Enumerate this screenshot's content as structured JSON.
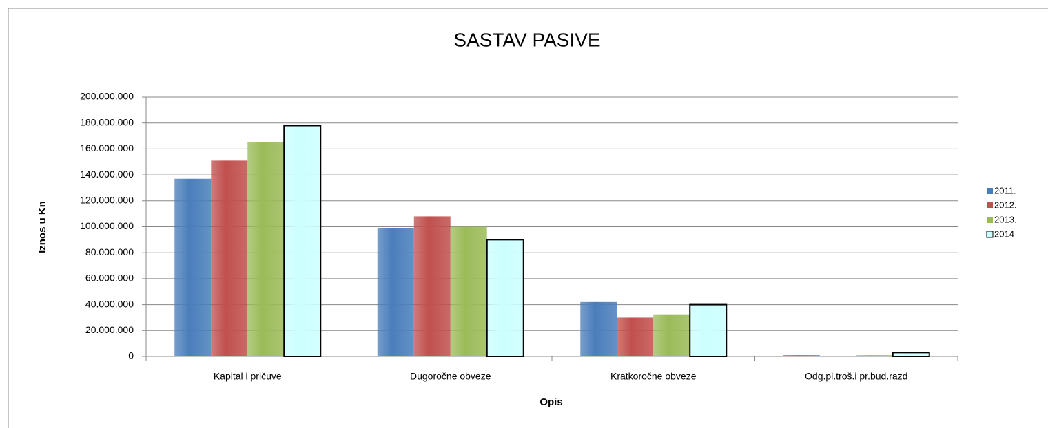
{
  "chart_data": {
    "type": "bar",
    "title": "SASTAV PASIVE",
    "x_label": "Opis",
    "y_label": "Iznos u Kn",
    "categories": [
      "Kapital i pričuve",
      "Dugoročne obveze",
      "Kratkoročne obveze",
      "Odg.pl.troš.i pr.bud.razd"
    ],
    "series": [
      {
        "name": "2011.",
        "color": "#4a7ebb",
        "values": [
          137000000,
          99000000,
          42000000,
          1000000
        ]
      },
      {
        "name": "2012.",
        "color": "#c0504d",
        "values": [
          151000000,
          108000000,
          30000000,
          500000
        ]
      },
      {
        "name": "2013.",
        "color": "#9bbb59",
        "values": [
          165000000,
          100000000,
          32000000,
          1000000
        ]
      },
      {
        "name": "2014",
        "color": "#ccffff",
        "values": [
          178000000,
          90000000,
          40000000,
          3000000
        ]
      }
    ],
    "ylim": [
      0,
      200000000
    ],
    "yticks": [
      0,
      {
        "value": 20000000,
        "label": "20.000.000"
      },
      {
        "value": 40000000,
        "label": "40.000.000"
      },
      {
        "value": 60000000,
        "label": "60.000.000"
      },
      {
        "value": 80000000,
        "label": "80.000.000"
      },
      {
        "value": 100000000,
        "label": "100.000.000"
      },
      {
        "value": 120000000,
        "label": "120.000.000"
      },
      {
        "value": 140000000,
        "label": "140.000.000"
      },
      {
        "value": 160000000,
        "label": "160.000.000"
      },
      {
        "value": 180000000,
        "label": "180.000.000"
      },
      {
        "value": 200000000,
        "label": "200.000.000"
      }
    ],
    "grid": true,
    "legend": "right"
  }
}
